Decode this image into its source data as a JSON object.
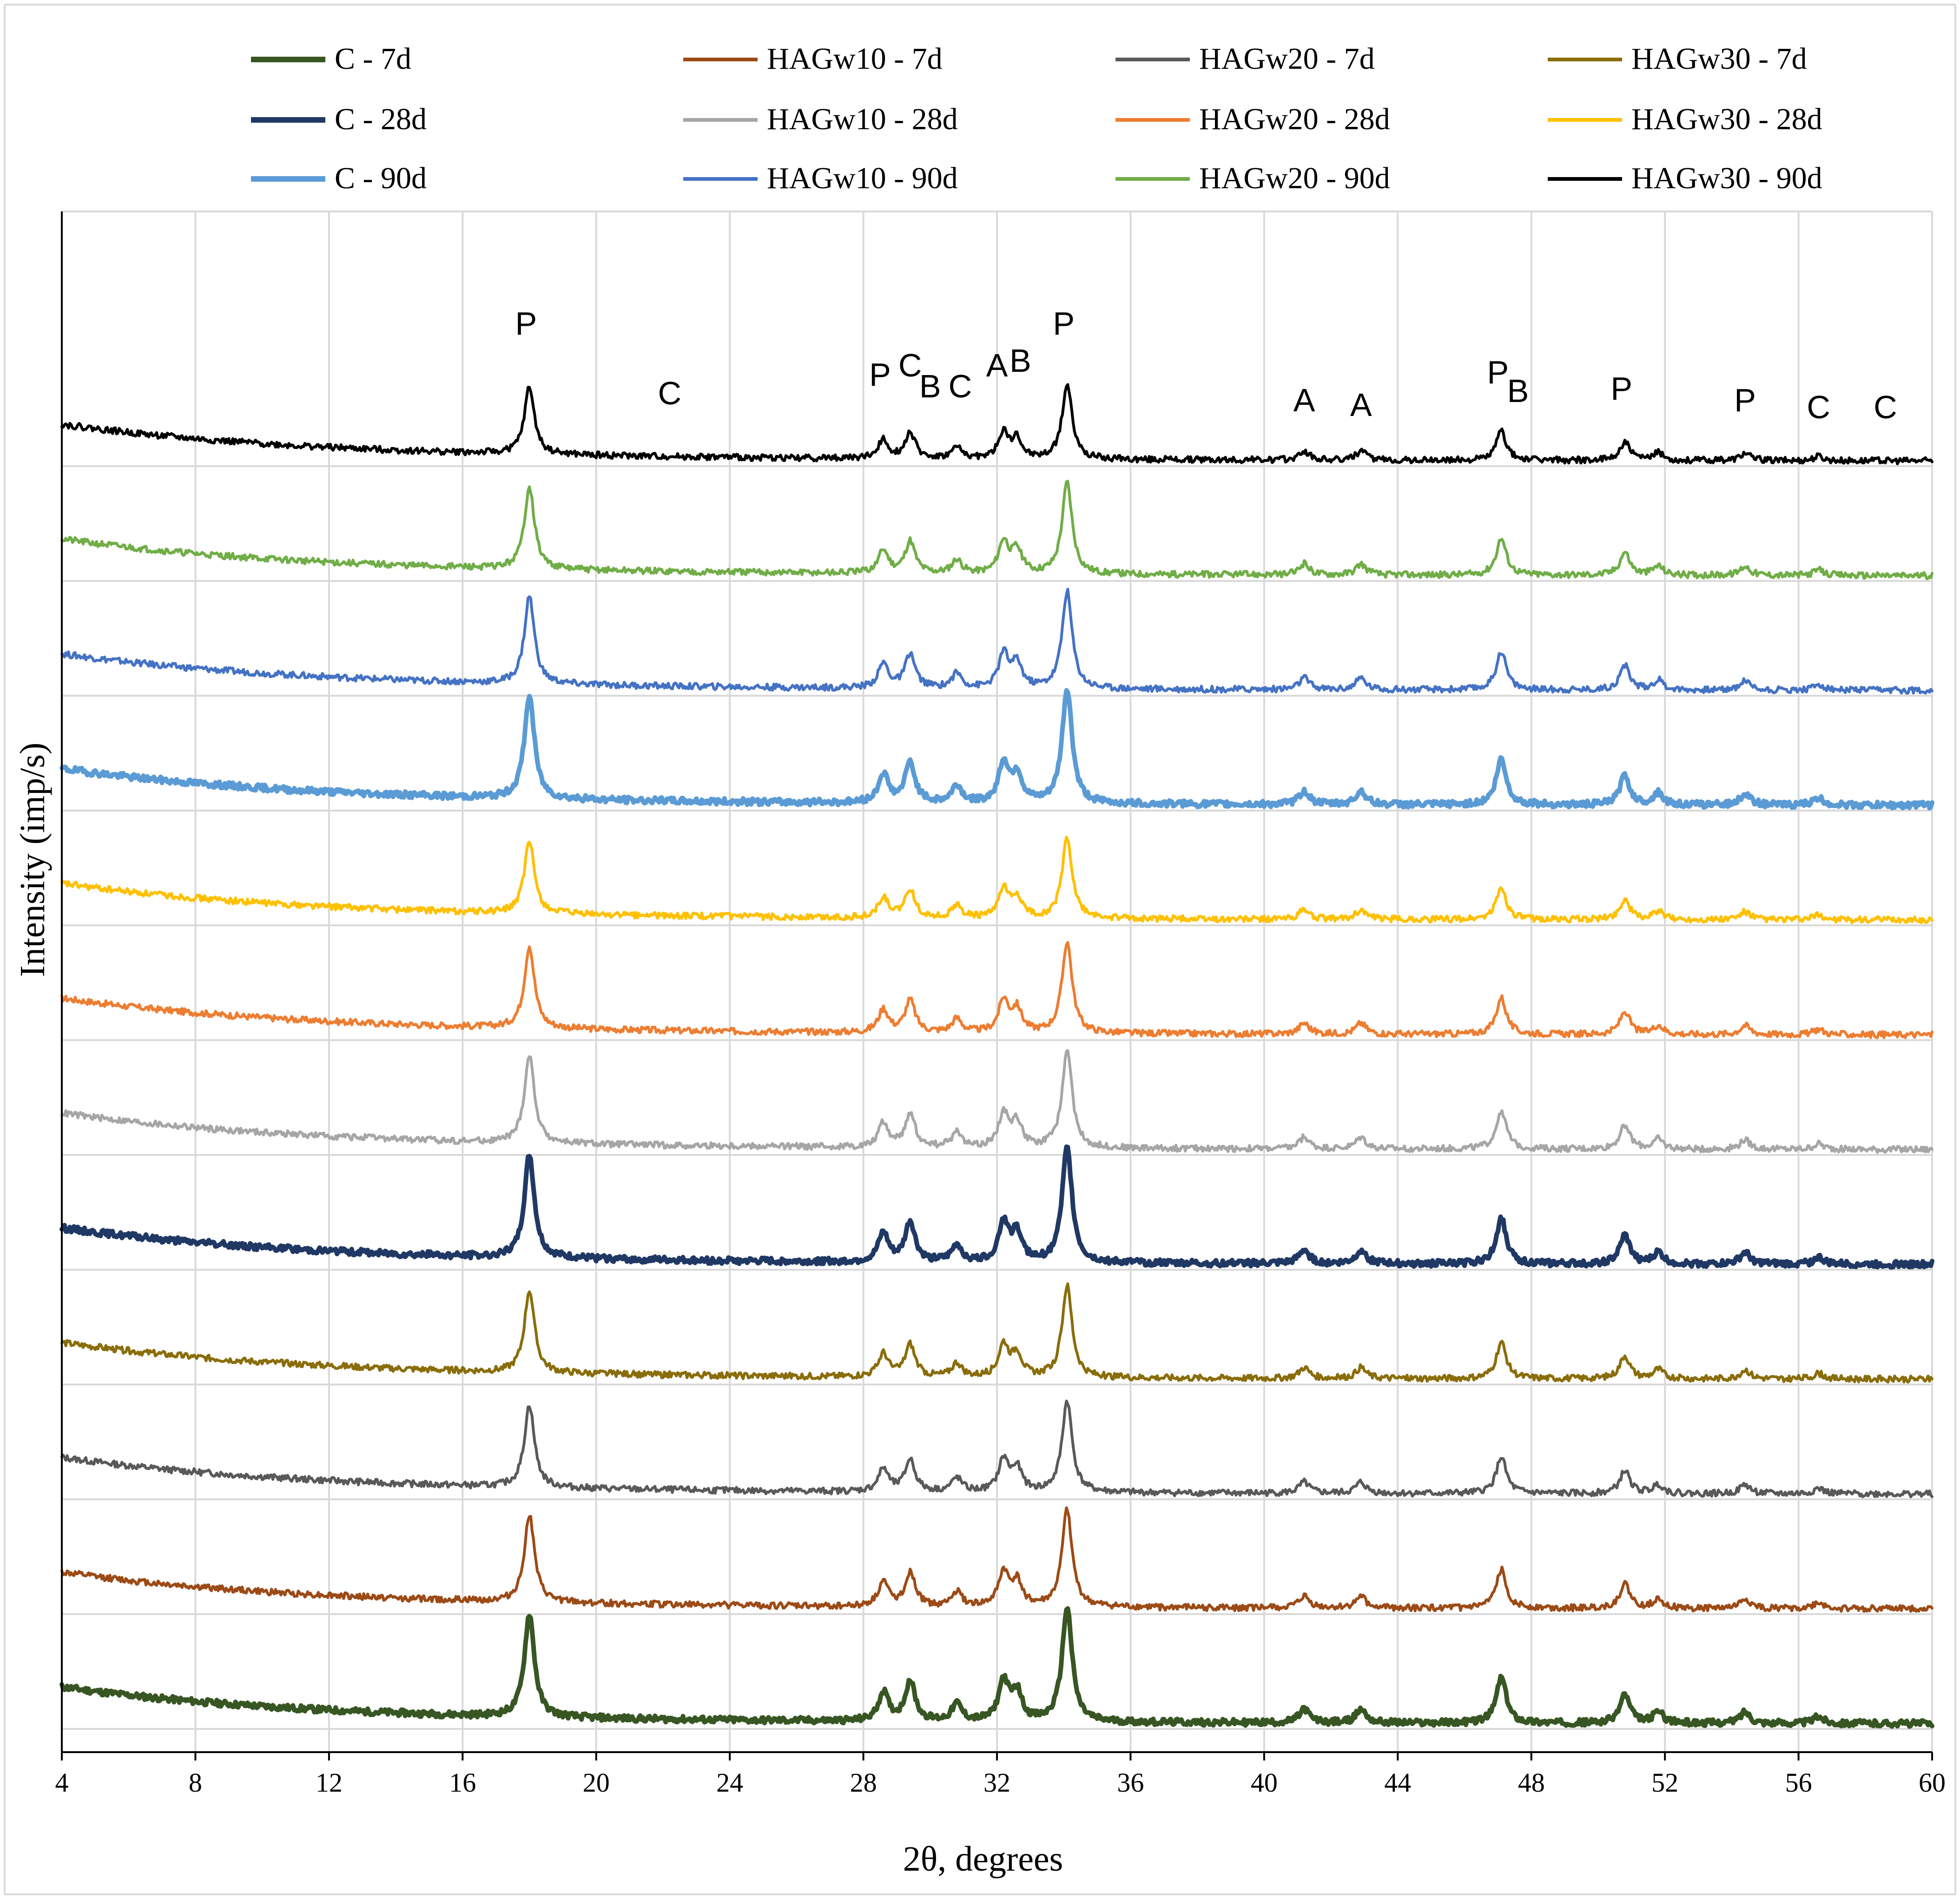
{
  "chart_data": {
    "type": "line",
    "title": "",
    "xlabel": "2θ, degrees",
    "ylabel": "Intensity (imp/s)",
    "xlim": [
      4,
      60
    ],
    "xticks": [
      4,
      8,
      12,
      16,
      20,
      24,
      28,
      32,
      36,
      40,
      44,
      48,
      52,
      56,
      60
    ],
    "xtick_labels": [
      "4",
      "8",
      "12",
      "16",
      "20",
      "24",
      "28",
      "32",
      "36",
      "40",
      "44",
      "48",
      "52",
      "56",
      "60"
    ],
    "grid": true,
    "legend_position": "top",
    "y_unit_note": "traces are vertically stacked; offsets in relative intensity units",
    "peak_list": [
      {
        "two_theta": 18.0,
        "height": 9
      },
      {
        "two_theta": 28.6,
        "height": 2.5
      },
      {
        "two_theta": 29.4,
        "height": 3.5
      },
      {
        "two_theta": 30.8,
        "height": 1.5
      },
      {
        "two_theta": 32.2,
        "height": 3.5
      },
      {
        "two_theta": 32.6,
        "height": 2.5
      },
      {
        "two_theta": 34.1,
        "height": 10
      },
      {
        "two_theta": 41.2,
        "height": 1.2
      },
      {
        "two_theta": 42.9,
        "height": 1.2
      },
      {
        "two_theta": 47.1,
        "height": 4
      },
      {
        "two_theta": 50.8,
        "height": 2.5
      },
      {
        "two_theta": 51.8,
        "height": 1
      },
      {
        "two_theta": 54.4,
        "height": 1
      },
      {
        "two_theta": 56.6,
        "height": 0.6
      }
    ],
    "series": [
      {
        "name": "C - 7d",
        "color": "#375623",
        "offset": 0,
        "amplitude": 1.0,
        "width": 10,
        "seed": 11
      },
      {
        "name": "HAGw10 - 7d",
        "color": "#9c4a16",
        "offset": 10,
        "amplitude": 0.85,
        "width": 6,
        "seed": 12
      },
      {
        "name": "HAGw20 - 7d",
        "color": "#595959",
        "offset": 20,
        "amplitude": 0.8,
        "width": 6,
        "seed": 13
      },
      {
        "name": "HAGw30 - 7d",
        "color": "#8a6d0b",
        "offset": 30,
        "amplitude": 0.8,
        "width": 6,
        "seed": 14
      },
      {
        "name": "C - 28d",
        "color": "#203864",
        "offset": 40,
        "amplitude": 1.0,
        "width": 10,
        "seed": 15
      },
      {
        "name": "HAGw10 - 28d",
        "color": "#a6a6a6",
        "offset": 50,
        "amplitude": 0.85,
        "width": 6,
        "seed": 16
      },
      {
        "name": "HAGw20 - 28d",
        "color": "#ed7d31",
        "offset": 60,
        "amplitude": 0.8,
        "width": 6,
        "seed": 17
      },
      {
        "name": "HAGw30 - 28d",
        "color": "#ffc000",
        "offset": 70,
        "amplitude": 0.7,
        "width": 6,
        "seed": 18
      },
      {
        "name": "C - 90d",
        "color": "#5b9bd5",
        "offset": 80,
        "amplitude": 1.0,
        "width": 10,
        "seed": 19
      },
      {
        "name": "HAGw10 - 90d",
        "color": "#4472c4",
        "offset": 90,
        "amplitude": 0.85,
        "width": 6,
        "seed": 20
      },
      {
        "name": "HAGw20 - 90d",
        "color": "#70ad47",
        "offset": 100,
        "amplitude": 0.8,
        "width": 6,
        "seed": 21
      },
      {
        "name": "HAGw30 - 90d",
        "color": "#000000",
        "offset": 110,
        "amplitude": 0.65,
        "width": 6,
        "seed": 22
      }
    ],
    "annotations": [
      {
        "text": "P",
        "two_theta": 17.9
      },
      {
        "text": "C",
        "two_theta": 22.2
      },
      {
        "text": "P",
        "two_theta": 28.5
      },
      {
        "text": "C",
        "two_theta": 29.4
      },
      {
        "text": "B",
        "two_theta": 30.0
      },
      {
        "text": "C",
        "two_theta": 30.9
      },
      {
        "text": "A",
        "two_theta": 32.0
      },
      {
        "text": "B",
        "two_theta": 32.7
      },
      {
        "text": "P",
        "two_theta": 34.0
      },
      {
        "text": "A",
        "two_theta": 41.2
      },
      {
        "text": "A",
        "two_theta": 42.9
      },
      {
        "text": "P",
        "two_theta": 47.0
      },
      {
        "text": "B",
        "two_theta": 47.6
      },
      {
        "text": "P",
        "two_theta": 50.7
      },
      {
        "text": "P",
        "two_theta": 54.4
      },
      {
        "text": "C",
        "two_theta": 56.6
      },
      {
        "text": "C",
        "two_theta": 58.6
      }
    ]
  }
}
